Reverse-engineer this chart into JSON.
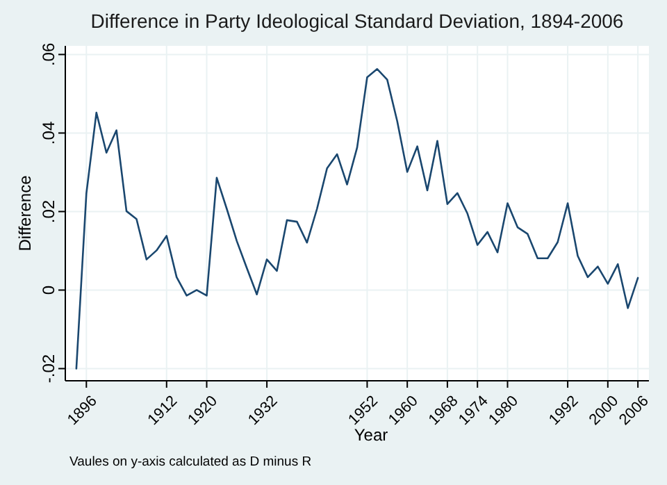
{
  "chart_data": {
    "type": "line",
    "title": "Difference in Party Ideological Standard Deviation, 1894-2006",
    "xlabel": "Year",
    "ylabel": "Difference",
    "annotations": [
      "Vaules on y-axis calculated as D minus R"
    ],
    "x": [
      1894,
      1896,
      1898,
      1900,
      1902,
      1904,
      1906,
      1908,
      1910,
      1912,
      1914,
      1916,
      1918,
      1920,
      1922,
      1924,
      1926,
      1928,
      1930,
      1932,
      1934,
      1936,
      1938,
      1940,
      1942,
      1944,
      1946,
      1948,
      1950,
      1952,
      1954,
      1956,
      1958,
      1960,
      1962,
      1964,
      1966,
      1968,
      1970,
      1972,
      1974,
      1976,
      1978,
      1980,
      1982,
      1984,
      1986,
      1988,
      1990,
      1992,
      1994,
      1996,
      1998,
      2000,
      2002,
      2004,
      2006
    ],
    "series": [
      {
        "color": "#1a476f",
        "values": [
          -0.02,
          0.0246,
          0.0452,
          0.035,
          0.0407,
          0.0201,
          0.0181,
          0.0078,
          0.0101,
          0.0138,
          0.0033,
          -0.0014,
          0,
          -0.0014,
          0.0286,
          0.0207,
          0.0125,
          0.0056,
          -0.0011,
          0.0078,
          0.0049,
          0.0178,
          0.0174,
          0.0121,
          0.0207,
          0.031,
          0.0346,
          0.0269,
          0.0363,
          0.0542,
          0.0563,
          0.0536,
          0.043,
          0.0301,
          0.0366,
          0.0254,
          0.038,
          0.0219,
          0.0247,
          0.0195,
          0.0115,
          0.0148,
          0.0096,
          0.0221,
          0.016,
          0.0143,
          0.0081,
          0.0081,
          0.0122,
          0.0221,
          0.0087,
          0.0033,
          0.006,
          0.0016,
          0.0066,
          -0.0046,
          0.0031
        ]
      }
    ],
    "xlim": [
      1891.8,
      2008.2
    ],
    "ylim": [
      -0.0231,
      0.0622
    ],
    "xticks": [
      1896,
      1912,
      1920,
      1932,
      1952,
      1960,
      1968,
      1974,
      1980,
      1992,
      2000,
      2006
    ],
    "yticks": [
      {
        "value": -0.02,
        "label": "-.02"
      },
      {
        "value": 0,
        "label": "0"
      },
      {
        "value": 0.02,
        "label": ".02"
      },
      {
        "value": 0.04,
        "label": ".04"
      },
      {
        "value": 0.06,
        "label": ".06"
      }
    ],
    "grid": true,
    "marker": "none",
    "line_style": "solid"
  }
}
